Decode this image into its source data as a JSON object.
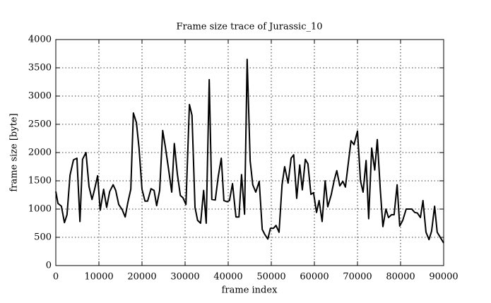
{
  "chart_data": {
    "type": "line",
    "title": "Frame size trace of Jurassic_10",
    "xlabel": "frame index",
    "ylabel": "frame size [byte]",
    "xlim": [
      0,
      90000
    ],
    "xticks": [
      0,
      10000,
      20000,
      30000,
      40000,
      50000,
      60000,
      70000,
      80000,
      90000
    ],
    "ylim": [
      0,
      4000
    ],
    "yticks": [
      0,
      500,
      1000,
      1500,
      2000,
      2500,
      3000,
      3500,
      4000
    ],
    "grid": true,
    "color": "#000000",
    "x": [
      0,
      500,
      1300,
      2000,
      2600,
      3300,
      4100,
      4900,
      5600,
      6200,
      7000,
      7700,
      8400,
      9000,
      9700,
      10300,
      11100,
      11800,
      12500,
      13300,
      13900,
      14600,
      15400,
      16100,
      16700,
      17400,
      18000,
      18700,
      19300,
      20000,
      20700,
      21300,
      22100,
      22800,
      23400,
      24100,
      24800,
      25400,
      26100,
      26900,
      27500,
      28200,
      28900,
      29500,
      30200,
      31000,
      31600,
      32300,
      32900,
      33600,
      34300,
      34900,
      35600,
      36200,
      37000,
      37700,
      38400,
      39000,
      39700,
      40300,
      41000,
      41800,
      42500,
      43100,
      43800,
      44400,
      45100,
      45700,
      46400,
      47200,
      47900,
      48500,
      49200,
      49800,
      50500,
      51100,
      51800,
      52500,
      53100,
      53900,
      54600,
      55200,
      55900,
      56600,
      57200,
      57900,
      58500,
      59200,
      59800,
      60500,
      61100,
      61800,
      62500,
      63100,
      63900,
      64600,
      65200,
      65900,
      66600,
      67200,
      67900,
      68500,
      69200,
      70000,
      70700,
      71300,
      72000,
      72600,
      73300,
      74000,
      74600,
      75300,
      75900,
      76600,
      77200,
      77900,
      78500,
      79200,
      79800,
      80500,
      81300,
      82000,
      82600,
      83300,
      83900,
      84600,
      85200,
      85900,
      86600,
      87200,
      87900,
      88500,
      90000
    ],
    "values": [
      1310,
      1100,
      1050,
      760,
      900,
      1600,
      1870,
      1900,
      780,
      1880,
      2000,
      1400,
      1170,
      1350,
      1590,
      980,
      1350,
      1030,
      1310,
      1430,
      1330,
      1080,
      990,
      860,
      1110,
      1350,
      2700,
      2530,
      2090,
      1350,
      1140,
      1140,
      1360,
      1330,
      1060,
      1330,
      2390,
      2110,
      1740,
      1300,
      2160,
      1620,
      1240,
      1200,
      1080,
      2850,
      2660,
      1030,
      800,
      750,
      1330,
      750,
      3290,
      1170,
      1160,
      1580,
      1900,
      1150,
      1130,
      1150,
      1450,
      860,
      860,
      1610,
      910,
      3650,
      1850,
      1430,
      1300,
      1490,
      640,
      550,
      470,
      660,
      660,
      710,
      590,
      1430,
      1750,
      1460,
      1900,
      1960,
      1190,
      1780,
      1340,
      1880,
      1800,
      1260,
      1290,
      940,
      1150,
      780,
      1500,
      1040,
      1250,
      1510,
      1680,
      1410,
      1490,
      1390,
      1830,
      2210,
      2140,
      2380,
      1500,
      1300,
      1860,
      830,
      2080,
      1690,
      2230,
      1340,
      690,
      1000,
      850,
      900,
      900,
      1430,
      700,
      800,
      1000,
      1000,
      1000,
      940,
      930,
      850,
      1150,
      590,
      460,
      610,
      1050,
      590,
      400
    ]
  }
}
